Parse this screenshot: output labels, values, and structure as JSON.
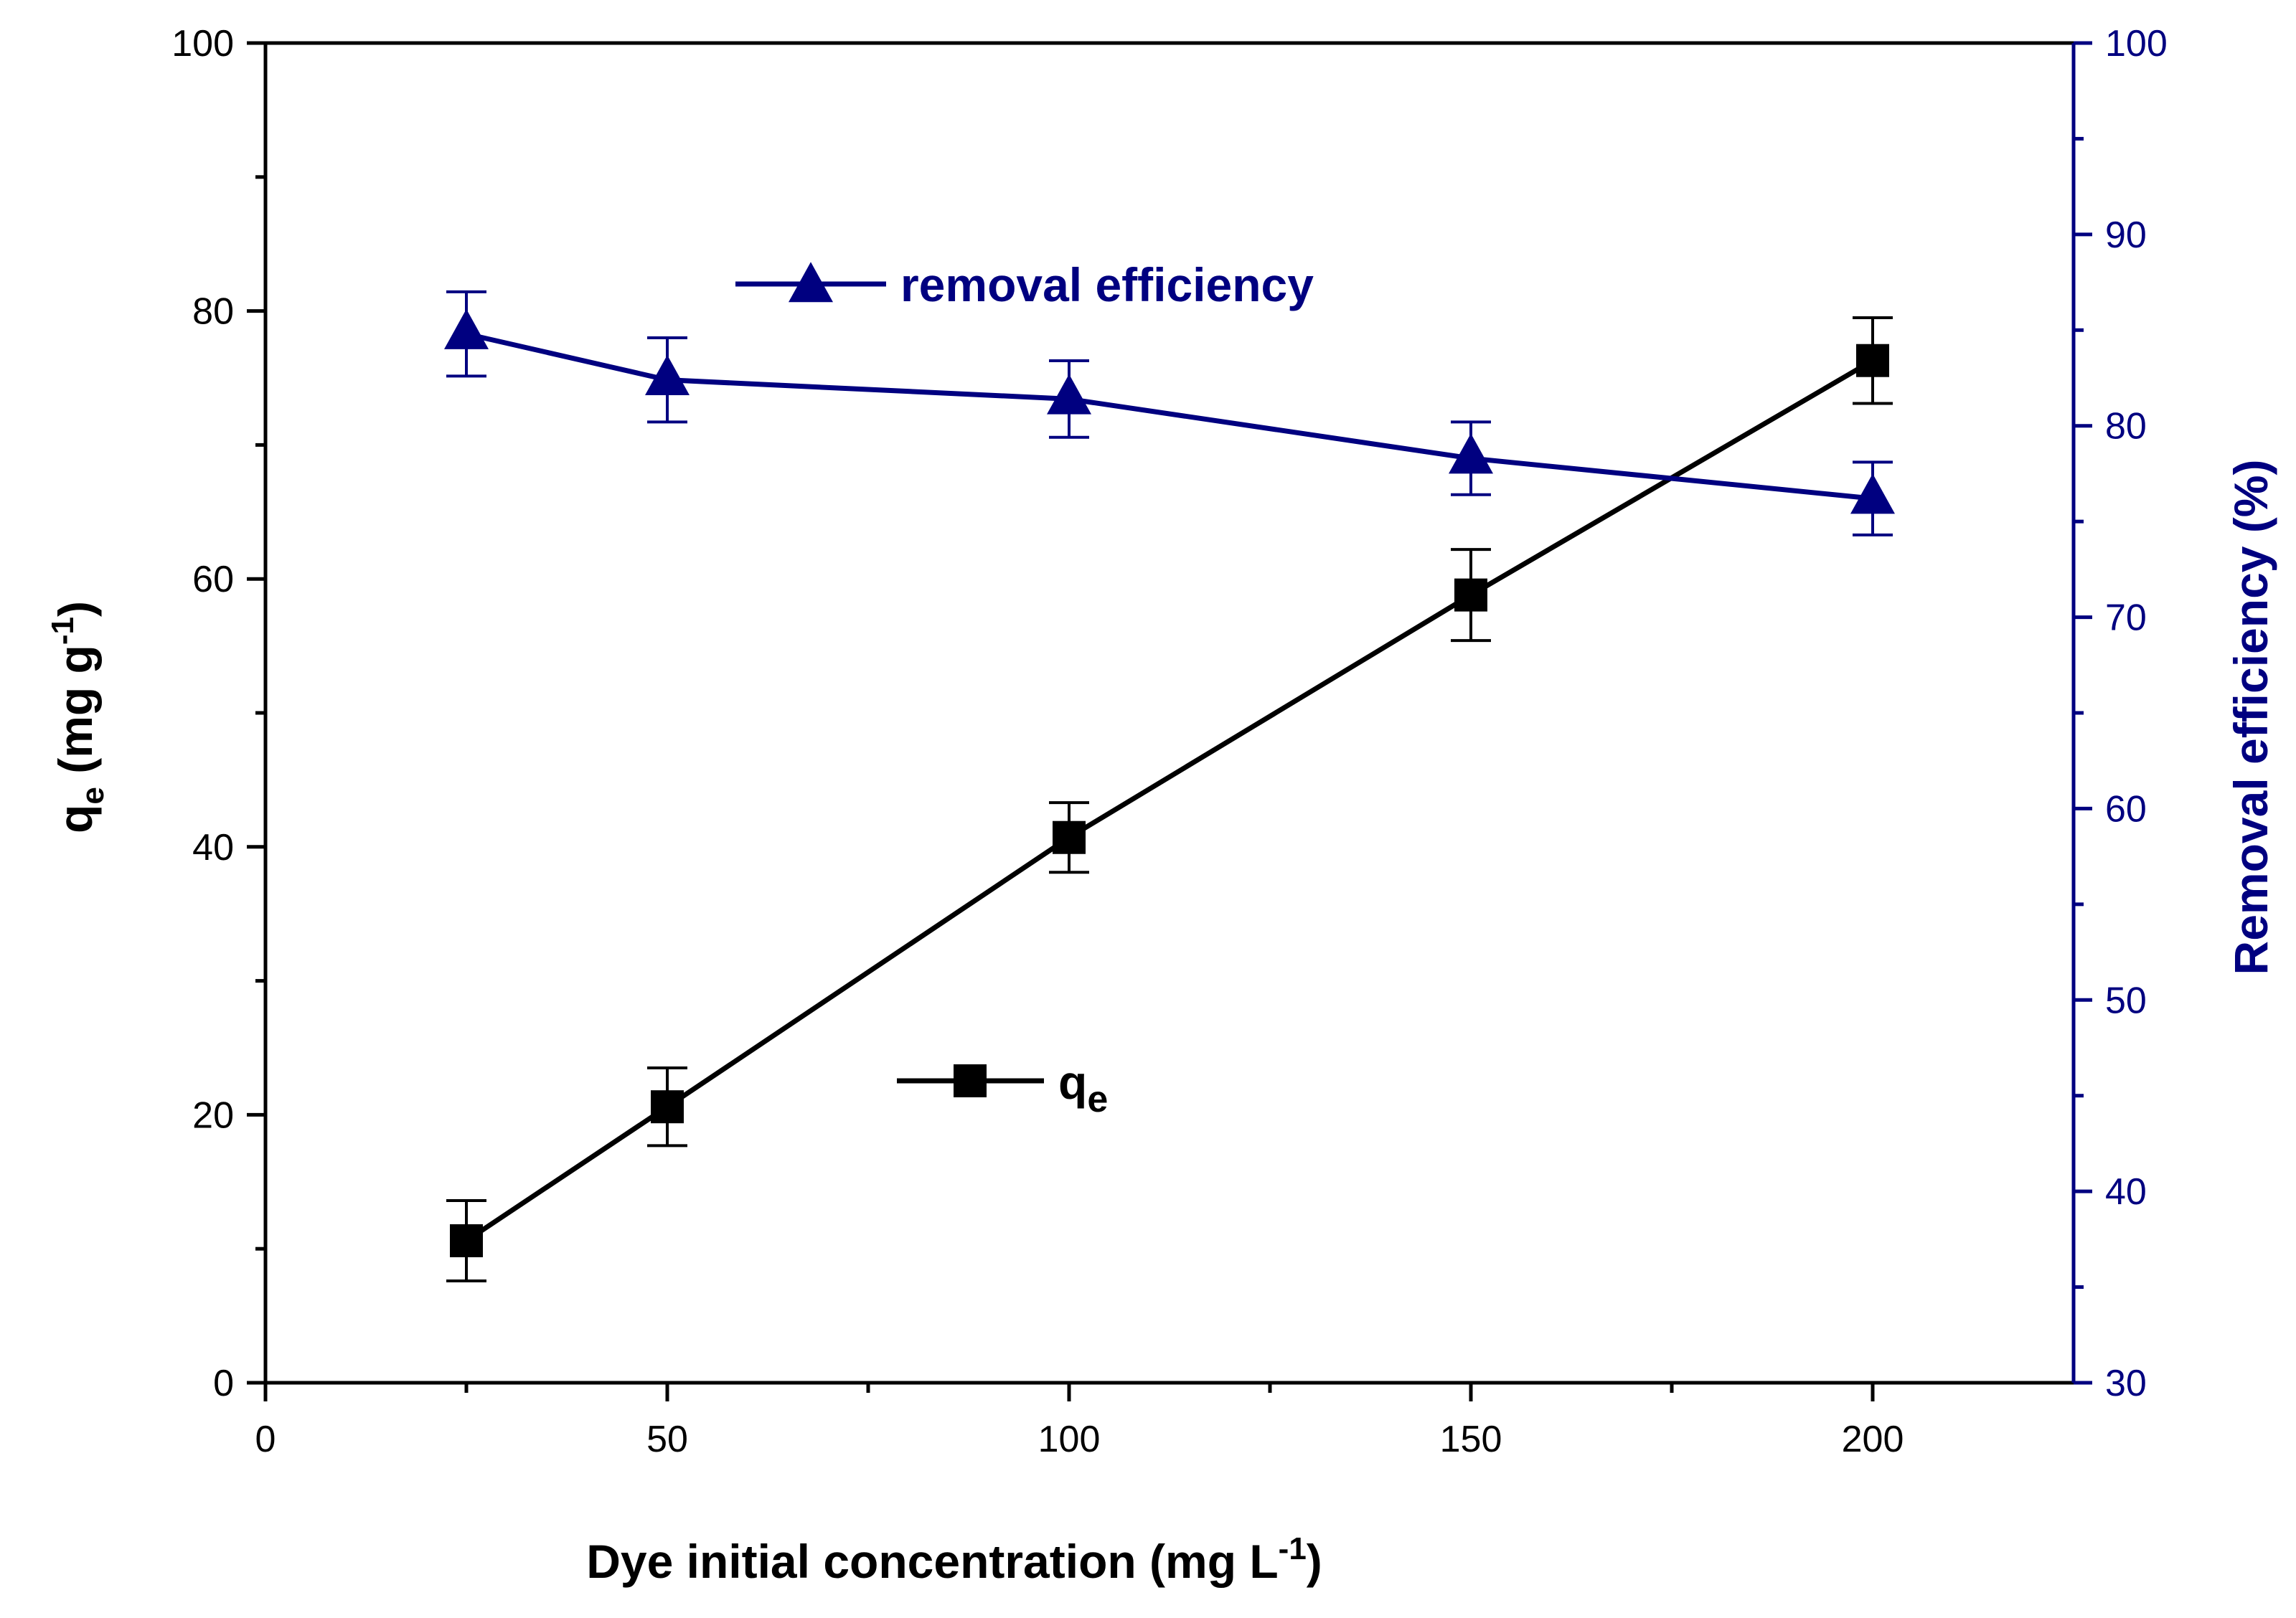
{
  "chart_data": {
    "type": "line",
    "xlabel": "Dye initial concentration (mg L",
    "xlabel_sup": "-1",
    "xlabel_end": ")",
    "ylabel_left": {
      "main": "q",
      "sub": "e",
      "unit": " (mg g",
      "sup": "-1",
      "end": ")"
    },
    "ylabel_right": "Removal efficiency (%)",
    "xlim": [
      0,
      225
    ],
    "ylim_left": [
      0,
      100
    ],
    "ylim_right": [
      30,
      100
    ],
    "x_ticks": [
      0,
      50,
      100,
      150,
      200
    ],
    "x_tick_labels": [
      "0",
      "50",
      "100",
      "150",
      "200"
    ],
    "y_left_ticks": [
      0,
      20,
      40,
      60,
      80,
      100
    ],
    "y_left_tick_labels": [
      "0",
      "20",
      "40",
      "60",
      "80",
      "100"
    ],
    "y_right_ticks": [
      30,
      40,
      50,
      60,
      70,
      80,
      90,
      100
    ],
    "y_right_tick_labels": [
      "30",
      "40",
      "50",
      "60",
      "70",
      "80",
      "90",
      "100"
    ],
    "grid": false,
    "series": [
      {
        "name": "q",
        "name_sub": "e",
        "axis": "left",
        "color": "#000000",
        "marker": "square",
        "x": [
          25,
          50,
          100,
          150,
          200
        ],
        "y": [
          10.6,
          20.6,
          40.7,
          58.8,
          76.3
        ],
        "err": [
          3.0,
          2.9,
          2.6,
          3.4,
          3.2
        ]
      },
      {
        "name": "removal efficiency",
        "axis": "right",
        "color": "#000080",
        "marker": "triangle",
        "x": [
          25,
          50,
          100,
          150,
          200
        ],
        "y": [
          84.8,
          82.4,
          81.4,
          78.3,
          76.2
        ],
        "err": [
          2.2,
          2.2,
          2.0,
          1.9,
          1.9
        ]
      }
    ]
  }
}
